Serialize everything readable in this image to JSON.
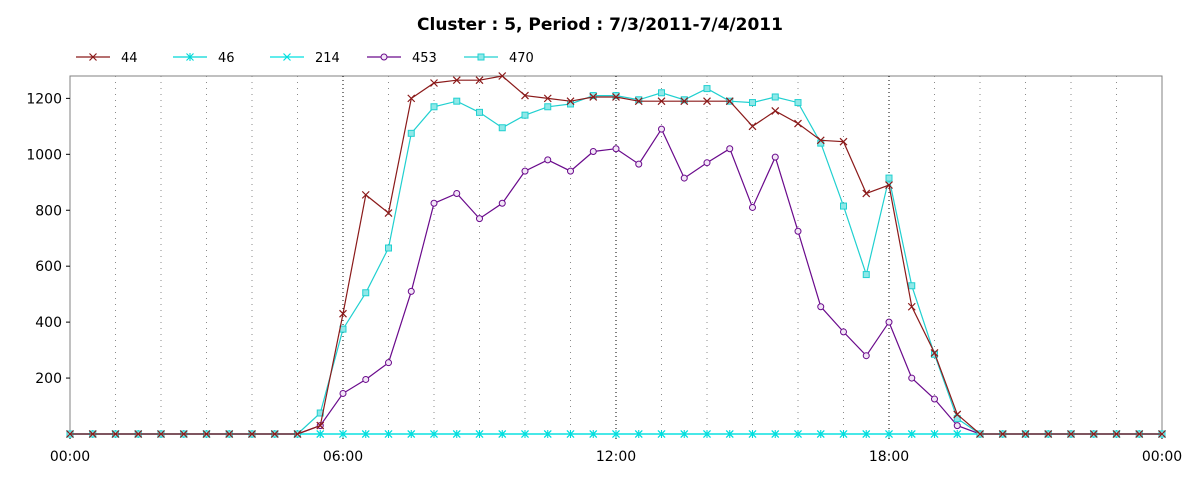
{
  "chart_data": {
    "type": "line",
    "title": "Cluster : 5, Period : 7/3/2011-7/4/2011",
    "xlabel": "",
    "ylabel": "",
    "x_ticks": [
      "00:00",
      "06:00",
      "12:00",
      "18:00",
      "00:00"
    ],
    "y_ticks": [
      "200",
      "400",
      "600",
      "800",
      "1000",
      "1200"
    ],
    "xlim": [
      0,
      24
    ],
    "ylim": [
      0,
      1280
    ],
    "grid": "vertical dotted",
    "legend_position": "top-left",
    "x_interval_hours": 0.5,
    "series": [
      {
        "name": "44",
        "color": "#8b1a1a",
        "marker": "x",
        "values": [
          0,
          0,
          0,
          0,
          0,
          0,
          0,
          0,
          0,
          0,
          0,
          30,
          430,
          855,
          790,
          1200,
          1255,
          1265,
          1265,
          1280,
          1210,
          1200,
          1190,
          1205,
          1205,
          1190,
          1190,
          1190,
          1190,
          1190,
          1100,
          1155,
          1110,
          1050,
          1045,
          860,
          890,
          455,
          290,
          70,
          0,
          0,
          0,
          0,
          0,
          0,
          0,
          0,
          0
        ]
      },
      {
        "name": "46",
        "color": "#00d8d8",
        "marker": "star",
        "values": [
          0,
          0,
          0,
          0,
          0,
          0,
          0,
          0,
          0,
          0,
          0,
          0,
          0,
          0,
          0,
          0,
          0,
          0,
          0,
          0,
          0,
          0,
          0,
          0,
          0,
          0,
          0,
          0,
          0,
          0,
          0,
          0,
          0,
          0,
          0,
          0,
          0,
          0,
          0,
          0,
          0,
          0,
          0,
          0,
          0,
          0,
          0,
          0,
          0
        ]
      },
      {
        "name": "214",
        "color": "#00e0e0",
        "marker": "x",
        "values": [
          0,
          0,
          0,
          0,
          0,
          0,
          0,
          0,
          0,
          0,
          0,
          0,
          0,
          0,
          0,
          0,
          0,
          0,
          0,
          0,
          0,
          0,
          0,
          0,
          0,
          0,
          0,
          0,
          0,
          0,
          0,
          0,
          0,
          0,
          0,
          0,
          0,
          0,
          0,
          0,
          0,
          0,
          0,
          0,
          0,
          0,
          0,
          0,
          0
        ]
      },
      {
        "name": "453",
        "color": "#6a0a8c",
        "marker": "circle",
        "values": [
          0,
          0,
          0,
          0,
          0,
          0,
          0,
          0,
          0,
          0,
          0,
          30,
          145,
          195,
          255,
          510,
          825,
          860,
          770,
          825,
          940,
          980,
          940,
          1010,
          1020,
          965,
          1090,
          915,
          970,
          1020,
          810,
          990,
          725,
          455,
          365,
          280,
          400,
          200,
          125,
          30,
          0,
          0,
          0,
          0,
          0,
          0,
          0,
          0,
          0
        ]
      },
      {
        "name": "470",
        "color": "#20d0d0",
        "marker": "square",
        "values": [
          0,
          0,
          0,
          0,
          0,
          0,
          0,
          0,
          0,
          0,
          0,
          75,
          375,
          505,
          665,
          1075,
          1170,
          1190,
          1150,
          1095,
          1140,
          1170,
          1180,
          1210,
          1210,
          1195,
          1220,
          1195,
          1235,
          1190,
          1185,
          1205,
          1185,
          1040,
          815,
          570,
          915,
          530,
          285,
          55,
          0,
          0,
          0,
          0,
          0,
          0,
          0,
          0,
          0
        ]
      }
    ]
  }
}
